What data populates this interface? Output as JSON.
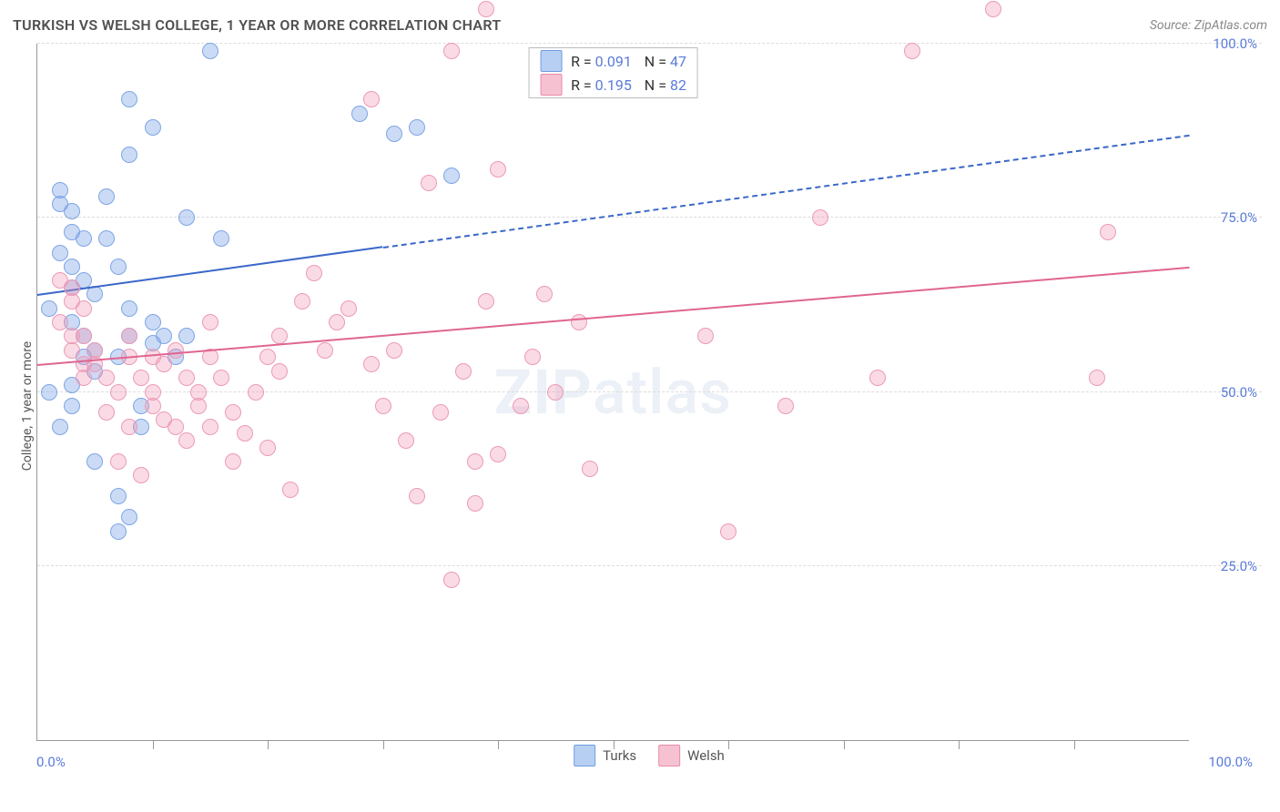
{
  "title": "TURKISH VS WELSH COLLEGE, 1 YEAR OR MORE CORRELATION CHART",
  "source": "Source: ZipAtlas.com",
  "watermark": {
    "bold": "ZIP",
    "rest": "atlas"
  },
  "ylabel": "College, 1 year or more",
  "chart": {
    "type": "scatter",
    "xlim": [
      0,
      100
    ],
    "ylim": [
      0,
      100
    ],
    "xticks_minor": [
      10,
      20,
      30,
      40,
      50,
      60,
      70,
      80,
      90
    ],
    "xtick_labels": [
      {
        "pos": 0,
        "label": "0.0%"
      },
      {
        "pos": 100,
        "label": "100.0%"
      }
    ],
    "yticks": [
      {
        "pos": 25,
        "label": "25.0%"
      },
      {
        "pos": 50,
        "label": "50.0%"
      },
      {
        "pos": 75,
        "label": "75.0%"
      },
      {
        "pos": 100,
        "label": "100.0%"
      }
    ],
    "background_color": "#ffffff",
    "grid_color": "#dddddd",
    "axis_color": "#999999",
    "marker_size": 18,
    "marker_stroke": 1.5,
    "series": [
      {
        "name": "Turks",
        "R": "0.091",
        "N": "47",
        "color_fill": "rgba(120,160,230,0.38)",
        "color_stroke": "#7da5e5",
        "swatch_fill": "#b7cff2",
        "swatch_stroke": "#6f9de0",
        "trend": {
          "y_at_x0": 64,
          "y_at_x100": 87,
          "solid_until_x": 30,
          "color": "#3a67c9",
          "width": 2.5
        },
        "points": [
          [
            2,
            79
          ],
          [
            2,
            77
          ],
          [
            3,
            76
          ],
          [
            3,
            73
          ],
          [
            4,
            72
          ],
          [
            2,
            70
          ],
          [
            3,
            68
          ],
          [
            4,
            66
          ],
          [
            5,
            64
          ],
          [
            1,
            62
          ],
          [
            3,
            60
          ],
          [
            3,
            65
          ],
          [
            4,
            58
          ],
          [
            5,
            56
          ],
          [
            5,
            53
          ],
          [
            3,
            51
          ],
          [
            3,
            48
          ],
          [
            2,
            45
          ],
          [
            1,
            50
          ],
          [
            6,
            72
          ],
          [
            7,
            68
          ],
          [
            7,
            55
          ],
          [
            8,
            62
          ],
          [
            8,
            58
          ],
          [
            9,
            48
          ],
          [
            9,
            45
          ],
          [
            10,
            57
          ],
          [
            10,
            60
          ],
          [
            11,
            58
          ],
          [
            12,
            55
          ],
          [
            13,
            75
          ],
          [
            15,
            99
          ],
          [
            8,
            92
          ],
          [
            10,
            88
          ],
          [
            8,
            84
          ],
          [
            6,
            78
          ],
          [
            13,
            58
          ],
          [
            28,
            90
          ],
          [
            31,
            87
          ],
          [
            33,
            88
          ],
          [
            36,
            81
          ],
          [
            7,
            35
          ],
          [
            8,
            32
          ],
          [
            7,
            30
          ],
          [
            5,
            40
          ],
          [
            4,
            55
          ],
          [
            16,
            72
          ]
        ]
      },
      {
        "name": "Welsh",
        "R": "0.195",
        "N": "82",
        "color_fill": "rgba(240,150,180,0.34)",
        "color_stroke": "#ec9ab5",
        "swatch_fill": "#f6c2d2",
        "swatch_stroke": "#e88ba8",
        "trend": {
          "y_at_x0": 54,
          "y_at_x100": 68,
          "solid_until_x": 100,
          "color": "#e06591",
          "width": 2.5
        },
        "points": [
          [
            2,
            66
          ],
          [
            3,
            65
          ],
          [
            3,
            63
          ],
          [
            4,
            62
          ],
          [
            2,
            60
          ],
          [
            4,
            58
          ],
          [
            5,
            56
          ],
          [
            5,
            54
          ],
          [
            6,
            52
          ],
          [
            7,
            50
          ],
          [
            8,
            58
          ],
          [
            8,
            55
          ],
          [
            9,
            52
          ],
          [
            10,
            50
          ],
          [
            10,
            48
          ],
          [
            11,
            54
          ],
          [
            11,
            46
          ],
          [
            12,
            56
          ],
          [
            12,
            45
          ],
          [
            13,
            52
          ],
          [
            13,
            43
          ],
          [
            14,
            50
          ],
          [
            14,
            48
          ],
          [
            15,
            55
          ],
          [
            15,
            45
          ],
          [
            16,
            52
          ],
          [
            17,
            47
          ],
          [
            17,
            40
          ],
          [
            18,
            44
          ],
          [
            19,
            50
          ],
          [
            20,
            55
          ],
          [
            20,
            42
          ],
          [
            21,
            53
          ],
          [
            22,
            36
          ],
          [
            23,
            63
          ],
          [
            24,
            67
          ],
          [
            25,
            56
          ],
          [
            26,
            60
          ],
          [
            27,
            62
          ],
          [
            29,
            54
          ],
          [
            30,
            48
          ],
          [
            31,
            56
          ],
          [
            32,
            43
          ],
          [
            34,
            80
          ],
          [
            35,
            47
          ],
          [
            36,
            99
          ],
          [
            37,
            53
          ],
          [
            38,
            40
          ],
          [
            39,
            105
          ],
          [
            29,
            92
          ],
          [
            33,
            35
          ],
          [
            38,
            34
          ],
          [
            39,
            63
          ],
          [
            40,
            82
          ],
          [
            42,
            48
          ],
          [
            43,
            55
          ],
          [
            44,
            64
          ],
          [
            45,
            50
          ],
          [
            48,
            39
          ],
          [
            36,
            23
          ],
          [
            40,
            41
          ],
          [
            47,
            60
          ],
          [
            58,
            58
          ],
          [
            60,
            30
          ],
          [
            65,
            48
          ],
          [
            68,
            75
          ],
          [
            73,
            52
          ],
          [
            76,
            99
          ],
          [
            83,
            105
          ],
          [
            92,
            52
          ],
          [
            93,
            73
          ],
          [
            6,
            47
          ],
          [
            7,
            40
          ],
          [
            8,
            45
          ],
          [
            9,
            38
          ],
          [
            10,
            55
          ],
          [
            3,
            58
          ],
          [
            3,
            56
          ],
          [
            4,
            54
          ],
          [
            4,
            52
          ],
          [
            21,
            58
          ],
          [
            15,
            60
          ]
        ]
      }
    ]
  },
  "legend": [
    {
      "label": "Turks",
      "fill": "#b7cff2",
      "stroke": "#6f9de0"
    },
    {
      "label": "Welsh",
      "fill": "#f6c2d2",
      "stroke": "#e88ba8"
    }
  ]
}
